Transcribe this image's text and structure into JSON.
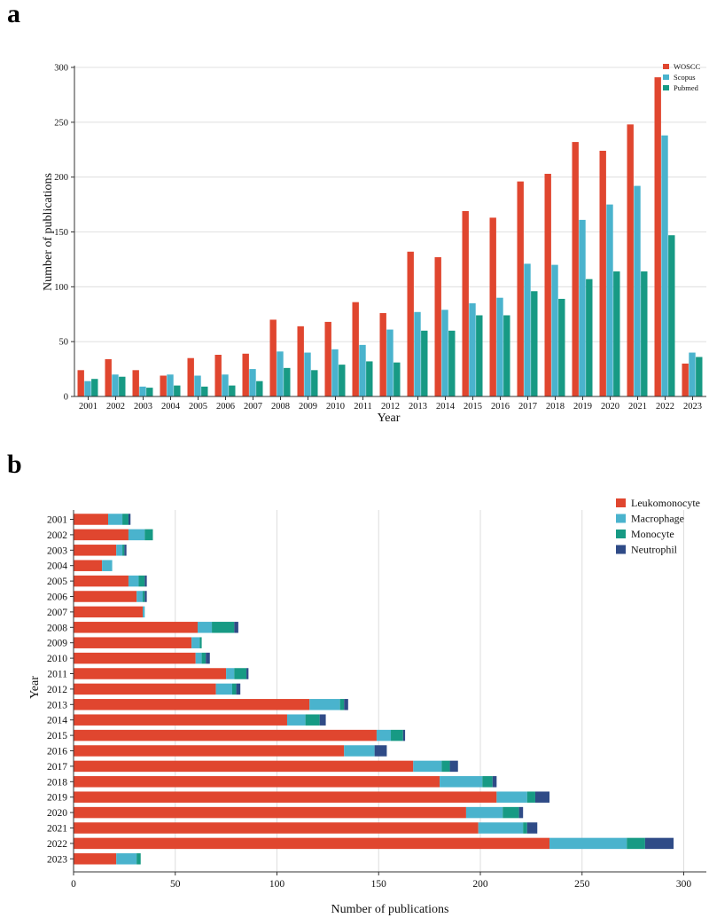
{
  "panels": {
    "a": "a",
    "b": "b"
  },
  "chart_data": [
    {
      "type": "bar",
      "orientation": "vertical",
      "grouped": true,
      "panel_label": "a",
      "title": "",
      "xlabel": "Year",
      "ylabel": "Number of publications",
      "ylim": [
        0,
        300
      ],
      "yticks": [
        "0",
        "50",
        "100",
        "150",
        "200",
        "250",
        "300"
      ],
      "grid": "horizontal",
      "legend": "top-right",
      "categories": [
        "2001",
        "2002",
        "2003",
        "2004",
        "2005",
        "2006",
        "2007",
        "2008",
        "2009",
        "2010",
        "2011",
        "2012",
        "2013",
        "2014",
        "2015",
        "2016",
        "2017",
        "2018",
        "2019",
        "2020",
        "2021",
        "2022",
        "2023"
      ],
      "series": [
        {
          "name": "WOSCC",
          "color": "#e0462f",
          "values": [
            24,
            34,
            24,
            19,
            35,
            38,
            39,
            70,
            64,
            68,
            86,
            76,
            132,
            127,
            169,
            163,
            196,
            203,
            232,
            224,
            248,
            291,
            30
          ]
        },
        {
          "name": "Scopus",
          "color": "#4ab3cd",
          "values": [
            14,
            20,
            9,
            20,
            19,
            20,
            25,
            41,
            40,
            43,
            47,
            61,
            77,
            79,
            85,
            90,
            121,
            120,
            161,
            175,
            192,
            238,
            40
          ]
        },
        {
          "name": "Pubmed",
          "color": "#179a84",
          "values": [
            16,
            18,
            8,
            10,
            9,
            10,
            14,
            26,
            24,
            29,
            32,
            31,
            60,
            60,
            74,
            74,
            96,
            89,
            107,
            114,
            114,
            147,
            36
          ]
        }
      ]
    },
    {
      "type": "bar",
      "orientation": "horizontal",
      "stacked": true,
      "panel_label": "b",
      "title": "",
      "xlabel": "Number of publications",
      "ylabel": "Year",
      "xlim": [
        0,
        310
      ],
      "xticks": [
        "0",
        "50",
        "100",
        "150",
        "200",
        "250",
        "300"
      ],
      "grid": "vertical",
      "legend": "top-right",
      "categories": [
        "2001",
        "2002",
        "2003",
        "2004",
        "2005",
        "2006",
        "2007",
        "2008",
        "2009",
        "2010",
        "2011",
        "2012",
        "2013",
        "2014",
        "2015",
        "2016",
        "2017",
        "2018",
        "2019",
        "2020",
        "2021",
        "2022",
        "2023"
      ],
      "series": [
        {
          "name": "Leukomonocyte",
          "color": "#e0462f",
          "values": [
            17,
            27,
            21,
            14,
            27,
            31,
            34,
            61,
            58,
            60,
            75,
            70,
            116,
            105,
            149,
            133,
            167,
            180,
            208,
            193,
            199,
            234,
            21
          ]
        },
        {
          "name": "Macrophage",
          "color": "#4ab3cd",
          "values": [
            7,
            8,
            3,
            5,
            5,
            3,
            1,
            7,
            4,
            3,
            4,
            8,
            15,
            9,
            7,
            15,
            14,
            21,
            15,
            18,
            22,
            38,
            10
          ]
        },
        {
          "name": "Monocyte",
          "color": "#179a84",
          "values": [
            3,
            4,
            1,
            0,
            3,
            1,
            0,
            11,
            1,
            2,
            6,
            2,
            2,
            7,
            6,
            0,
            4,
            5,
            4,
            8,
            2,
            9,
            2
          ]
        },
        {
          "name": "Neutrophil",
          "color": "#2f4b87",
          "values": [
            1,
            0,
            1,
            0,
            1,
            1,
            0,
            2,
            0,
            2,
            1,
            2,
            2,
            3,
            1,
            6,
            4,
            2,
            7,
            2,
            5,
            14,
            0
          ]
        }
      ]
    }
  ]
}
